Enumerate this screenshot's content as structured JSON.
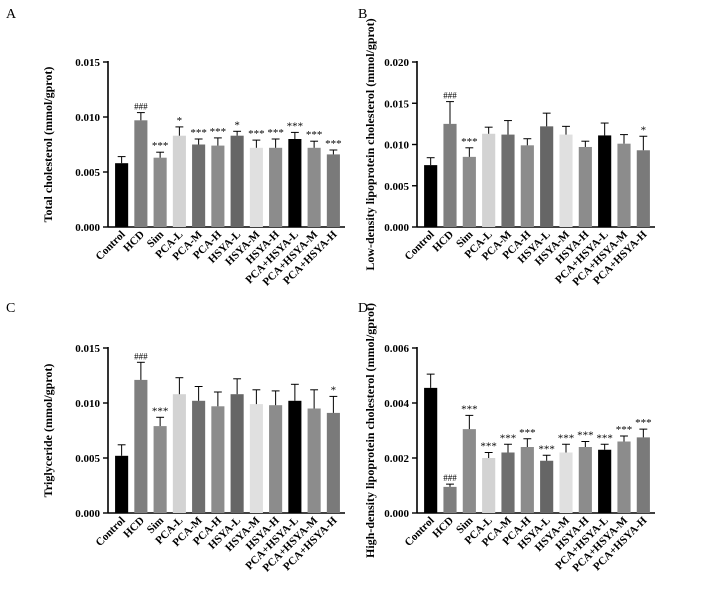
{
  "colors": {
    "Control": "#000000",
    "HCD": "#7f7f7f",
    "Sim": "#8c8c8c",
    "PCA-L": "#d3d3d3",
    "PCA-M": "#6e6e6e",
    "PCA-H": "#8c8c8c",
    "HSYA-L": "#666666",
    "HSYA-M": "#e0e0e0",
    "HSYA-H": "#8c8c8c",
    "PCA+HSYA-L": "#000000",
    "PCA+HSYA-M": "#8c8c8c",
    "PCA+HSYA-H": "#7a7a7a"
  },
  "chart_data": [
    {
      "panel_label": "A",
      "type": "bar",
      "ylabel": "Total cholesterol (mmol/gprot)",
      "ylim": [
        0,
        0.015
      ],
      "yticks": [
        "0.000",
        "0.005",
        "0.010",
        "0.015"
      ],
      "categories": [
        "Control",
        "HCD",
        "Sim",
        "PCA-L",
        "PCA-M",
        "PCA-H",
        "HSYA-L",
        "HSYA-M",
        "HSYA-H",
        "PCA+HSYA-L",
        "PCA+HSYA-M",
        "PCA+HSYA-H"
      ],
      "values": [
        0.0058,
        0.0097,
        0.0063,
        0.0083,
        0.0075,
        0.0074,
        0.0083,
        0.0072,
        0.0072,
        0.008,
        0.0072,
        0.0066
      ],
      "errors": [
        0.0006,
        0.0007,
        0.0005,
        0.0008,
        0.0005,
        0.0007,
        0.0004,
        0.0007,
        0.0008,
        0.0006,
        0.0006,
        0.0004
      ],
      "annotations": [
        "",
        "###",
        "***",
        "*",
        "***",
        "***",
        "*",
        "***",
        "***",
        "***",
        "***",
        "***"
      ]
    },
    {
      "panel_label": "B",
      "type": "bar",
      "ylabel": "Low-density lipoprotein cholesterol (mmol/gprot)",
      "ylim": [
        0,
        0.02
      ],
      "yticks": [
        "0.000",
        "0.005",
        "0.010",
        "0.015",
        "0.020"
      ],
      "categories": [
        "Control",
        "HCD",
        "Sim",
        "PCA-L",
        "PCA-M",
        "PCA-H",
        "HSYA-L",
        "HSYA-M",
        "HSYA-H",
        "PCA+HSYA-L",
        "PCA+HSYA-M",
        "PCA+HSYA-H"
      ],
      "values": [
        0.0075,
        0.0125,
        0.0085,
        0.0113,
        0.0112,
        0.0099,
        0.0122,
        0.0112,
        0.0097,
        0.0111,
        0.0101,
        0.0093
      ],
      "errors": [
        0.0009,
        0.0027,
        0.0011,
        0.0008,
        0.0017,
        0.0008,
        0.0016,
        0.001,
        0.0007,
        0.0015,
        0.0011,
        0.0017
      ],
      "annotations": [
        "",
        "###",
        "***",
        "",
        "",
        "",
        "",
        "",
        "",
        "",
        "",
        "*"
      ]
    },
    {
      "panel_label": "C",
      "type": "bar",
      "ylabel": "Triglyceride (mmol/gprot)",
      "ylim": [
        0,
        0.015
      ],
      "yticks": [
        "0.000",
        "0.005",
        "0.010",
        "0.015"
      ],
      "categories": [
        "Control",
        "HCD",
        "Sim",
        "PCA-L",
        "PCA-M",
        "PCA-H",
        "HSYA-L",
        "HSYA-M",
        "HSYA-H",
        "PCA+HSYA-L",
        "PCA+HSYA-M",
        "PCA+HSYA-H"
      ],
      "values": [
        0.0052,
        0.0121,
        0.0079,
        0.0108,
        0.0102,
        0.0097,
        0.0108,
        0.0099,
        0.0098,
        0.0102,
        0.0095,
        0.0091
      ],
      "errors": [
        0.001,
        0.0016,
        0.0008,
        0.0015,
        0.0013,
        0.0013,
        0.0014,
        0.0013,
        0.0013,
        0.0015,
        0.0017,
        0.0015
      ],
      "annotations": [
        "",
        "###",
        "***",
        "",
        "",
        "",
        "",
        "",
        "",
        "",
        "",
        "*"
      ]
    },
    {
      "panel_label": "D",
      "type": "bar",
      "ylabel": "High-density lipoprotein cholesterol (mmol/gprot)",
      "ylim": [
        0,
        0.006
      ],
      "yticks": [
        "0.000",
        "0.002",
        "0.004",
        "0.006"
      ],
      "categories": [
        "Control",
        "HCD",
        "Sim",
        "PCA-L",
        "PCA-M",
        "PCA-H",
        "HSYA-L",
        "HSYA-M",
        "HSYA-H",
        "PCA+HSYA-L",
        "PCA+HSYA-M",
        "PCA+HSYA-H"
      ],
      "values": [
        0.00455,
        0.00095,
        0.00305,
        0.002,
        0.0022,
        0.0024,
        0.0019,
        0.0022,
        0.0024,
        0.0023,
        0.0026,
        0.00275
      ],
      "errors": [
        0.0005,
        0.0001,
        0.0005,
        0.0002,
        0.0003,
        0.0003,
        0.0002,
        0.0003,
        0.0002,
        0.0002,
        0.0002,
        0.0003
      ],
      "annotations": [
        "",
        "###",
        "***",
        "***",
        "***",
        "***",
        "***",
        "***",
        "***",
        "***",
        "***",
        "***"
      ]
    }
  ]
}
